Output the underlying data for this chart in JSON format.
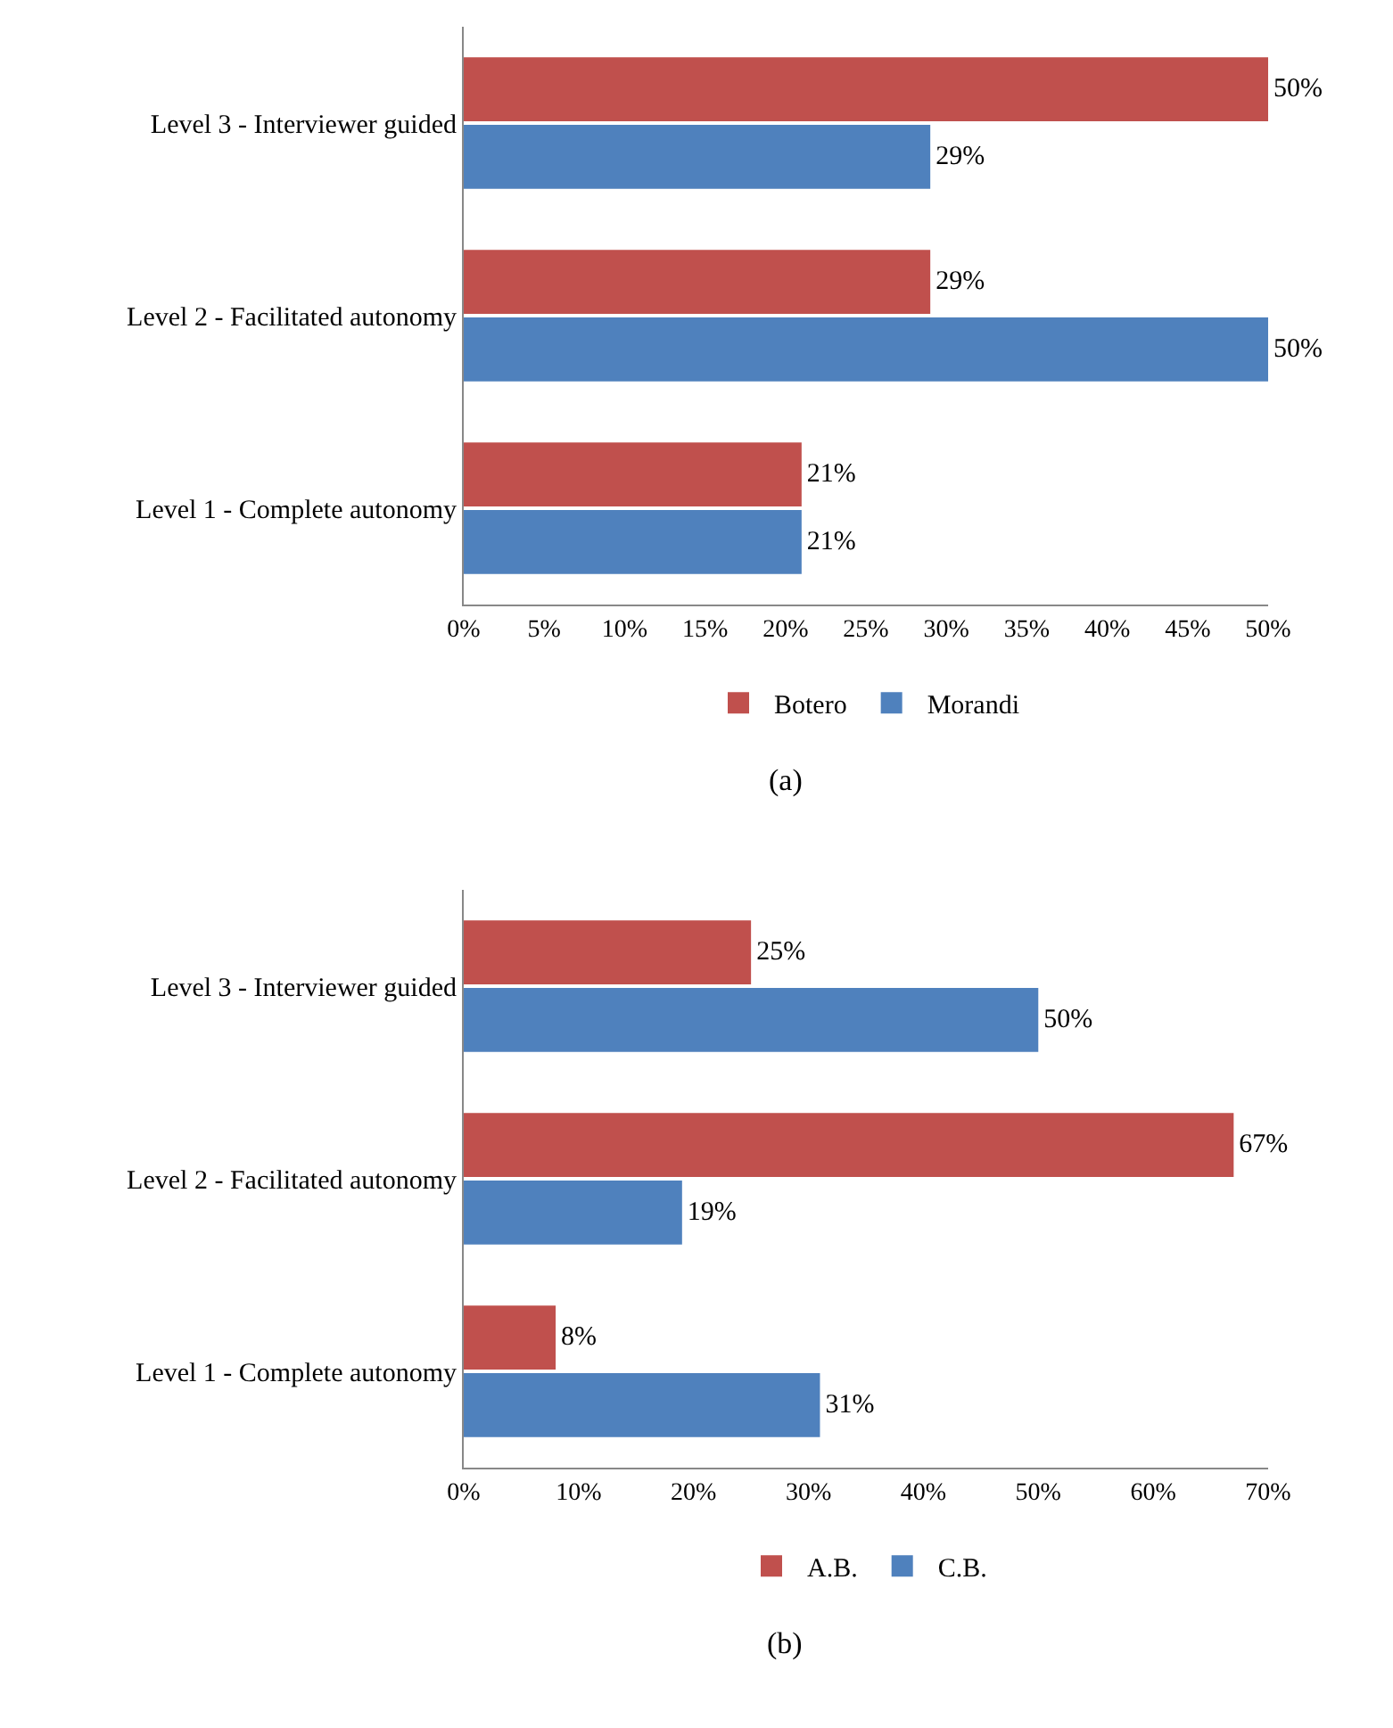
{
  "chart_data": [
    {
      "type": "bar",
      "orientation": "horizontal",
      "categories": [
        "Level 3 - Interviewer guided",
        "Level 2 - Facilitated autonomy",
        "Level 1 - Complete autonomy"
      ],
      "series": [
        {
          "name": "Botero",
          "color": "#c0504d",
          "values": [
            50,
            29,
            21
          ],
          "value_labels": [
            "50%",
            "29%",
            "21%"
          ]
        },
        {
          "name": "Morandi",
          "color": "#4f81bd",
          "values": [
            29,
            50,
            21
          ],
          "value_labels": [
            "29%",
            "50%",
            "21%"
          ]
        }
      ],
      "xlim": [
        0,
        50
      ],
      "xticks": [
        {
          "value": 0,
          "label": "0%"
        },
        {
          "value": 5,
          "label": "5%"
        },
        {
          "value": 10,
          "label": "10%"
        },
        {
          "value": 15,
          "label": "15%"
        },
        {
          "value": 20,
          "label": "20%"
        },
        {
          "value": 25,
          "label": "25%"
        },
        {
          "value": 30,
          "label": "30%"
        },
        {
          "value": 35,
          "label": "35%"
        },
        {
          "value": 40,
          "label": "40%"
        },
        {
          "value": 45,
          "label": "45%"
        },
        {
          "value": 50,
          "label": "50%"
        }
      ],
      "grid": false,
      "legend": "bottom",
      "annotations": [
        "(a)"
      ]
    },
    {
      "type": "bar",
      "orientation": "horizontal",
      "categories": [
        "Level 3 - Interviewer guided",
        "Level 2 - Facilitated autonomy",
        "Level 1 - Complete autonomy"
      ],
      "series": [
        {
          "name": "A.B.",
          "color": "#c0504d",
          "values": [
            25,
            67,
            8
          ],
          "value_labels": [
            "25%",
            "67%",
            "8%"
          ]
        },
        {
          "name": "C.B.",
          "color": "#4f81bd",
          "values": [
            50,
            19,
            31
          ],
          "value_labels": [
            "50%",
            "19%",
            "31%"
          ]
        }
      ],
      "xlim": [
        0,
        70
      ],
      "xticks": [
        {
          "value": 0,
          "label": "0%"
        },
        {
          "value": 10,
          "label": "10%"
        },
        {
          "value": 20,
          "label": "20%"
        },
        {
          "value": 30,
          "label": "30%"
        },
        {
          "value": 40,
          "label": "40%"
        },
        {
          "value": 50,
          "label": "50%"
        },
        {
          "value": 60,
          "label": "60%"
        },
        {
          "value": 70,
          "label": "70%"
        }
      ],
      "grid": false,
      "legend": "bottom",
      "annotations": [
        "(b)"
      ]
    }
  ]
}
